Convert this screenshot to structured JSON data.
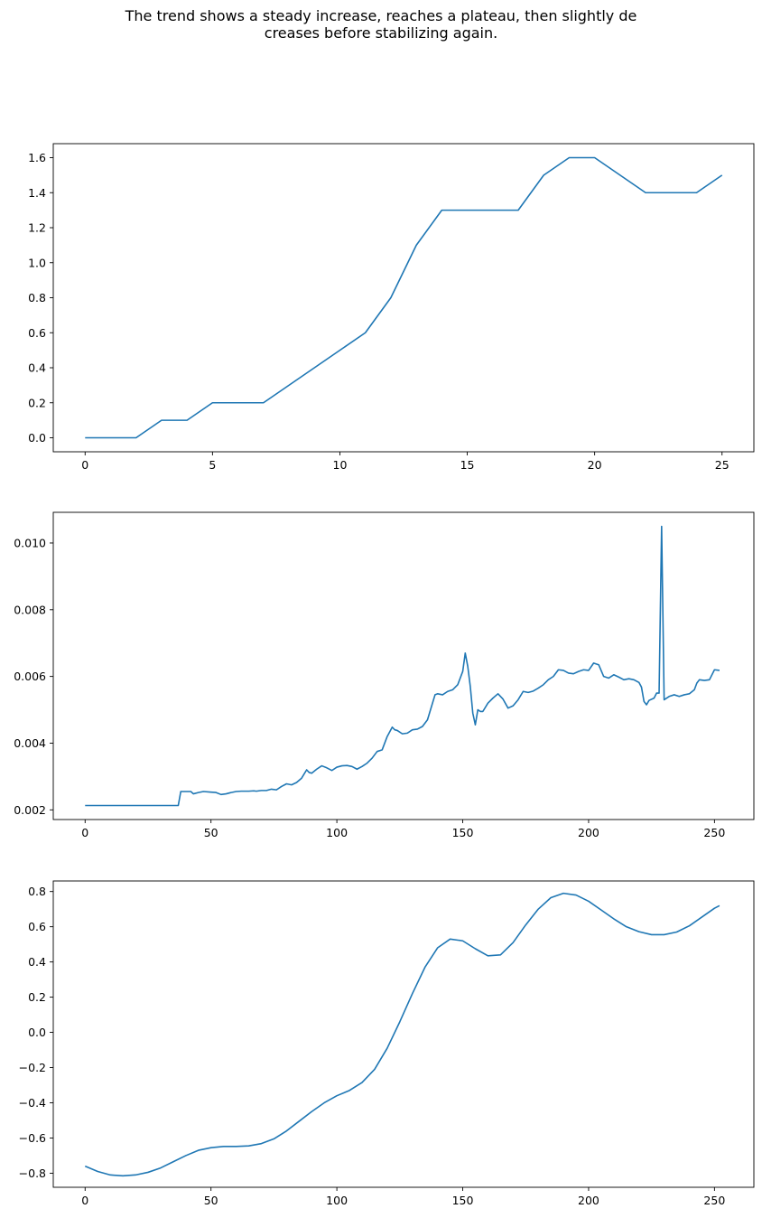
{
  "title": {
    "line1": "The trend shows a steady increase, reaches a plateau, then slightly de",
    "line2": "creases before stabilizing again."
  },
  "line_color": "#1f77b4",
  "chart_data": [
    {
      "type": "line",
      "x": [
        0,
        1,
        2,
        3,
        4,
        5,
        6,
        7,
        8,
        9,
        10,
        11,
        12,
        13,
        14,
        15,
        16,
        17,
        18,
        19,
        20,
        21,
        22,
        23,
        24,
        25
      ],
      "y": [
        0.0,
        0.0,
        0.0,
        0.1,
        0.1,
        0.2,
        0.2,
        0.2,
        0.3,
        0.4,
        0.5,
        0.6,
        0.8,
        1.1,
        1.3,
        1.3,
        1.3,
        1.3,
        1.5,
        1.6,
        1.6,
        1.5,
        1.4,
        1.4,
        1.4,
        1.5
      ],
      "xlim": [
        -1.25,
        26.25
      ],
      "ylim": [
        -0.08,
        1.68
      ],
      "xticks": [
        0,
        5,
        10,
        15,
        20,
        25
      ],
      "yticks": [
        0.0,
        0.2,
        0.4,
        0.6,
        0.8,
        1.0,
        1.2,
        1.4,
        1.6
      ],
      "xtick_labels": [
        "0",
        "5",
        "10",
        "15",
        "20",
        "25"
      ],
      "ytick_labels": [
        "0.0",
        "0.2",
        "0.4",
        "0.6",
        "0.8",
        "1.0",
        "1.2",
        "1.4",
        "1.6"
      ],
      "grid": false
    },
    {
      "type": "line",
      "x": [
        0,
        10,
        20,
        30,
        37,
        38,
        40,
        42,
        43,
        45,
        47,
        50,
        52,
        54,
        56,
        58,
        60,
        62,
        65,
        67,
        68,
        70,
        72,
        74,
        76,
        78,
        80,
        82,
        84,
        86,
        88,
        89,
        90,
        92,
        94,
        96,
        98,
        100,
        102,
        104,
        106,
        108,
        110,
        112,
        114,
        116,
        118,
        120,
        122,
        123,
        124,
        126,
        128,
        130,
        132,
        134,
        136,
        138,
        139,
        140,
        142,
        144,
        146,
        148,
        150,
        151,
        152,
        153,
        154,
        155,
        156,
        157,
        158,
        160,
        162,
        164,
        166,
        168,
        170,
        172,
        174,
        176,
        178,
        180,
        182,
        184,
        186,
        188,
        190,
        192,
        194,
        196,
        198,
        200,
        202,
        204,
        206,
        208,
        210,
        212,
        214,
        216,
        218,
        220,
        221,
        222,
        223,
        224,
        226,
        227,
        228,
        229,
        230,
        232,
        234,
        236,
        238,
        240,
        242,
        243,
        244,
        246,
        248,
        250,
        252
      ],
      "y": [
        0.00213,
        0.00213,
        0.00213,
        0.00213,
        0.00213,
        0.00255,
        0.00255,
        0.00255,
        0.00248,
        0.00252,
        0.00255,
        0.00253,
        0.00252,
        0.00246,
        0.00248,
        0.00252,
        0.00255,
        0.00256,
        0.00256,
        0.00257,
        0.00256,
        0.00258,
        0.00258,
        0.00262,
        0.0026,
        0.0027,
        0.00278,
        0.00275,
        0.00282,
        0.00295,
        0.0032,
        0.00312,
        0.0031,
        0.00322,
        0.00332,
        0.00326,
        0.00318,
        0.00328,
        0.00332,
        0.00333,
        0.0033,
        0.00322,
        0.0033,
        0.0034,
        0.00355,
        0.00375,
        0.0038,
        0.0042,
        0.00448,
        0.0044,
        0.00438,
        0.00428,
        0.0043,
        0.0044,
        0.00442,
        0.0045,
        0.0047,
        0.0052,
        0.00545,
        0.00548,
        0.00545,
        0.00555,
        0.0056,
        0.00575,
        0.00615,
        0.0067,
        0.0063,
        0.0057,
        0.0049,
        0.00455,
        0.005,
        0.00495,
        0.00495,
        0.0052,
        0.00535,
        0.00548,
        0.00532,
        0.00505,
        0.00512,
        0.0053,
        0.00555,
        0.00552,
        0.00556,
        0.00565,
        0.00575,
        0.0059,
        0.006,
        0.0062,
        0.00618,
        0.0061,
        0.00608,
        0.00615,
        0.0062,
        0.00618,
        0.0064,
        0.00635,
        0.006,
        0.00595,
        0.00605,
        0.00598,
        0.0059,
        0.00593,
        0.0059,
        0.00582,
        0.00568,
        0.00525,
        0.00515,
        0.00528,
        0.00535,
        0.0055,
        0.0055,
        0.0105,
        0.0053,
        0.0054,
        0.00545,
        0.0054,
        0.00545,
        0.00548,
        0.0056,
        0.0058,
        0.0059,
        0.00588,
        0.0059,
        0.0062,
        0.00618
      ],
      "xlim": [
        -12.65,
        265.65
      ],
      "ylim": [
        0.00171,
        0.01092
      ],
      "xticks": [
        0,
        50,
        100,
        150,
        200,
        250
      ],
      "yticks": [
        0.002,
        0.004,
        0.006,
        0.008,
        0.01
      ],
      "xtick_labels": [
        "0",
        "50",
        "100",
        "150",
        "200",
        "250"
      ],
      "ytick_labels": [
        "0.002",
        "0.004",
        "0.006",
        "0.008",
        "0.010"
      ],
      "grid": false
    },
    {
      "type": "line",
      "x": [
        0,
        5,
        10,
        15,
        20,
        25,
        30,
        35,
        40,
        45,
        50,
        55,
        60,
        65,
        70,
        75,
        80,
        85,
        90,
        95,
        100,
        105,
        110,
        115,
        120,
        125,
        130,
        135,
        140,
        145,
        150,
        155,
        160,
        165,
        170,
        175,
        180,
        185,
        190,
        195,
        200,
        205,
        210,
        215,
        220,
        225,
        230,
        235,
        240,
        245,
        250,
        252
      ],
      "y": [
        -0.76,
        -0.79,
        -0.81,
        -0.815,
        -0.81,
        -0.795,
        -0.77,
        -0.735,
        -0.7,
        -0.67,
        -0.655,
        -0.648,
        -0.648,
        -0.645,
        -0.632,
        -0.605,
        -0.56,
        -0.505,
        -0.45,
        -0.4,
        -0.36,
        -0.33,
        -0.285,
        -0.21,
        -0.09,
        0.06,
        0.22,
        0.37,
        0.48,
        0.53,
        0.52,
        0.475,
        0.435,
        0.44,
        0.51,
        0.61,
        0.7,
        0.765,
        0.79,
        0.78,
        0.745,
        0.695,
        0.645,
        0.6,
        0.572,
        0.555,
        0.555,
        0.57,
        0.605,
        0.655,
        0.705,
        0.72
      ],
      "xlim": [
        -12.65,
        265.65
      ],
      "ylim": [
        -0.88,
        0.86
      ],
      "xticks": [
        0,
        50,
        100,
        150,
        200,
        250
      ],
      "yticks": [
        -0.8,
        -0.6,
        -0.4,
        -0.2,
        0.0,
        0.2,
        0.4,
        0.6,
        0.8
      ],
      "xtick_labels": [
        "0",
        "50",
        "100",
        "150",
        "200",
        "250"
      ],
      "ytick_labels": [
        "−0.8",
        "−0.6",
        "−0.4",
        "−0.2",
        "0.0",
        "0.2",
        "0.4",
        "0.6",
        "0.8"
      ],
      "grid": false
    }
  ]
}
